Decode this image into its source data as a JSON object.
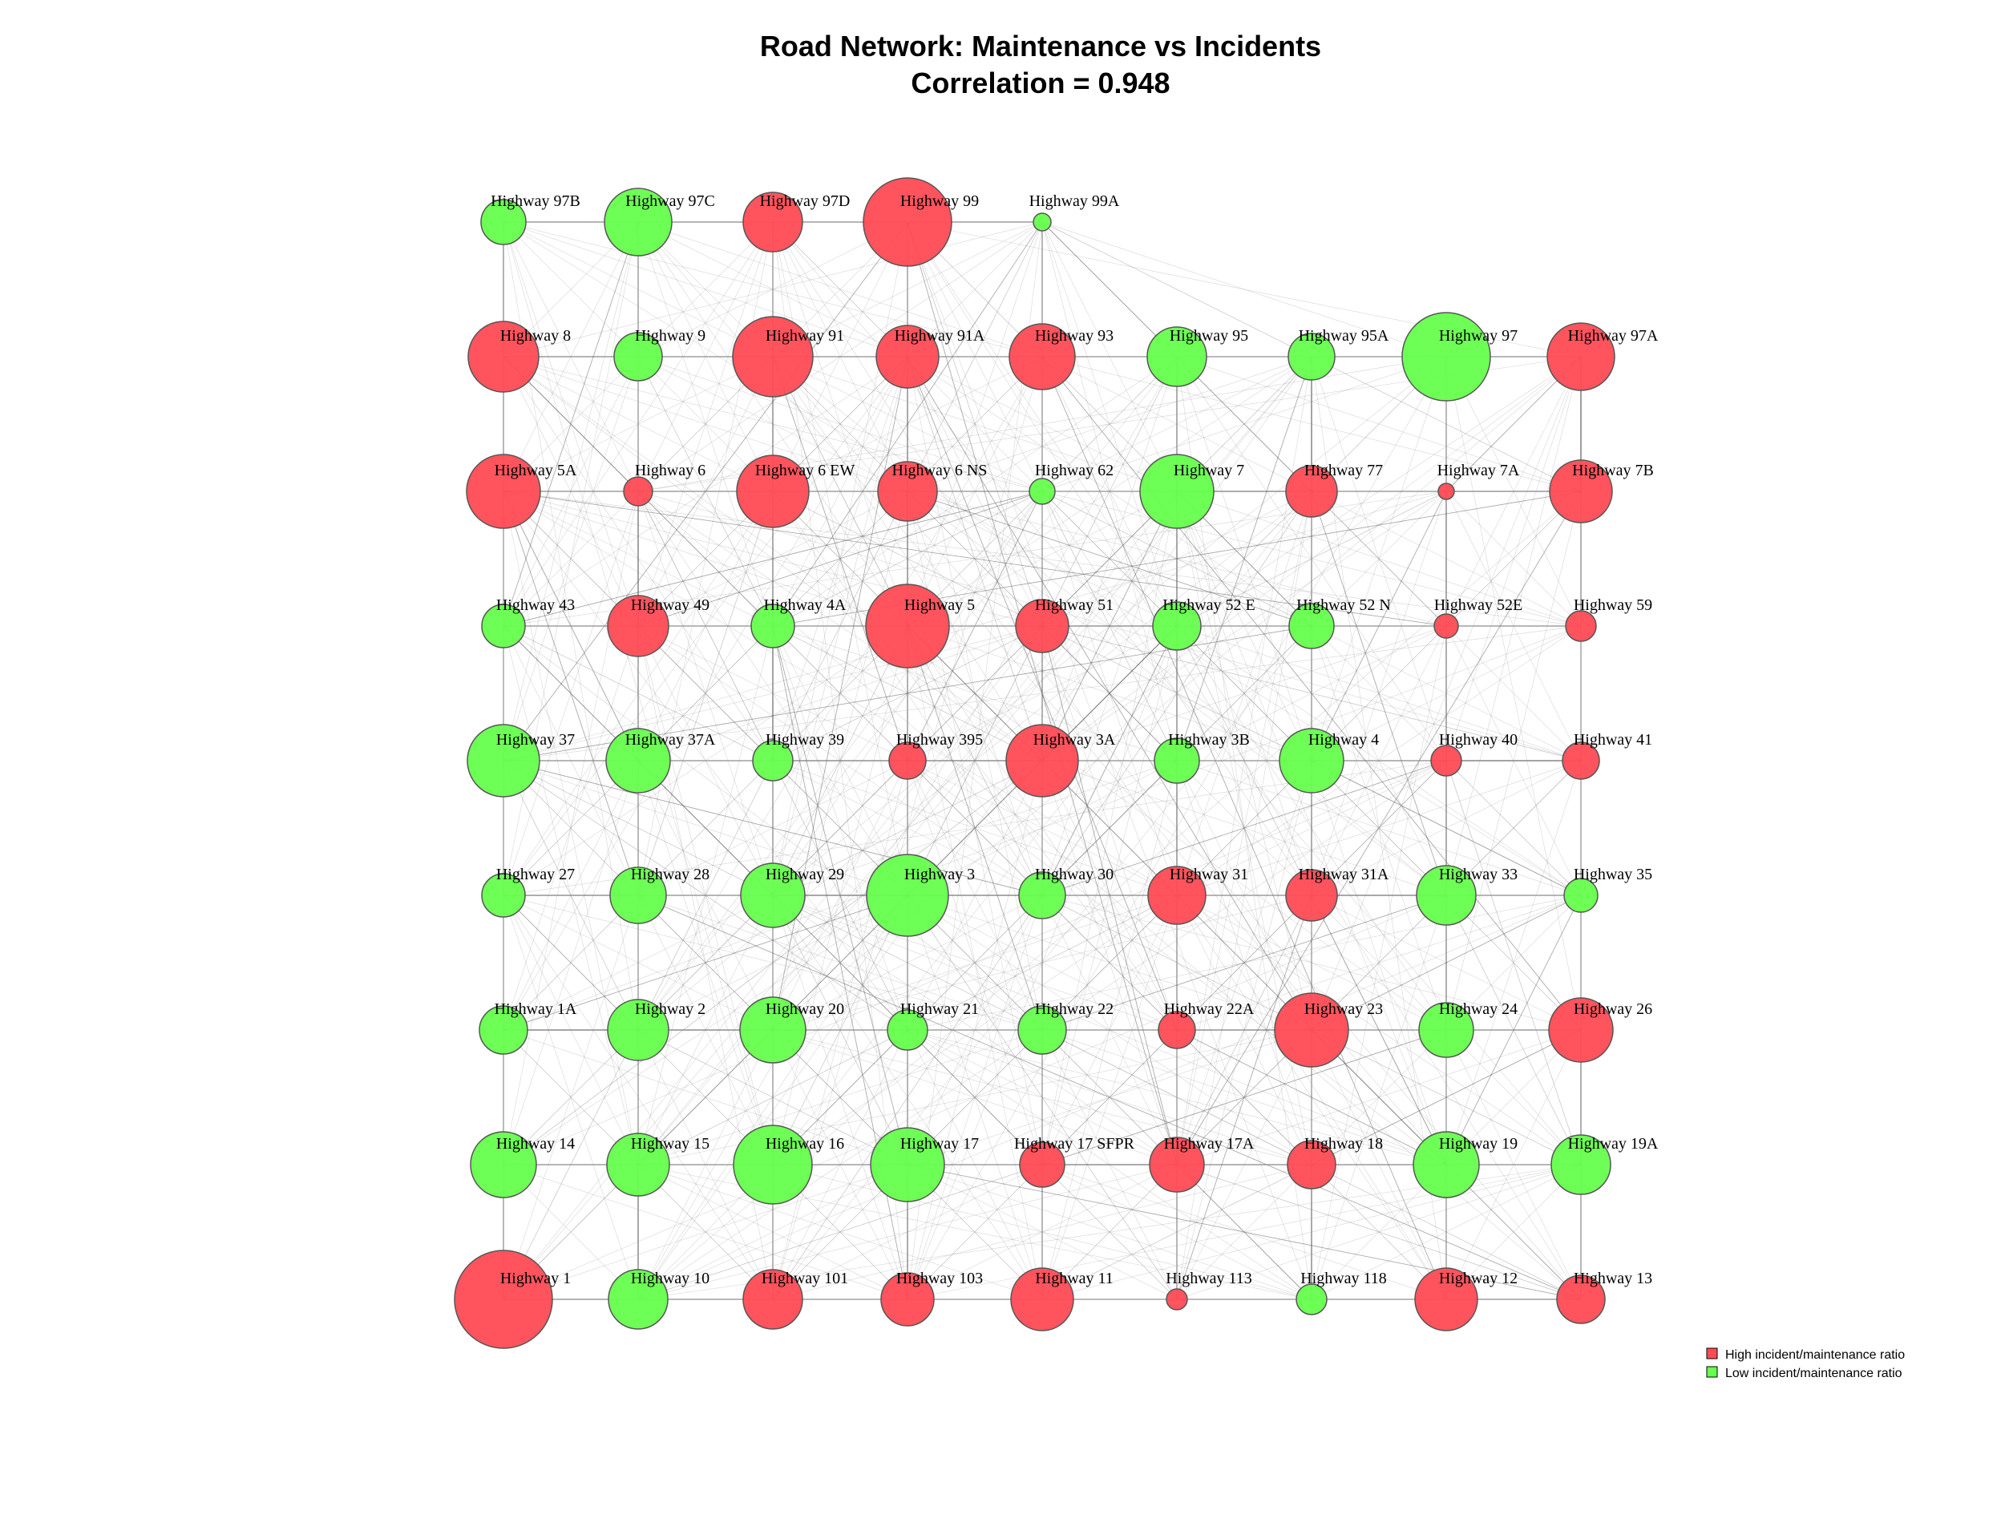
{
  "title": "Road Network: Maintenance vs Incidents",
  "subtitle": "Correlation = 0.948",
  "colors": {
    "high": "#FF4B55",
    "low": "#66FF4D",
    "edge": "#9a9a9a",
    "node_border": "#555555"
  },
  "legend": [
    {
      "label": "High incident/maintenance ratio",
      "color": "#FF4B55"
    },
    {
      "label": "Low incident/maintenance ratio",
      "color": "#66FF4D"
    }
  ],
  "rows": [
    {
      "nodes": [
        {
          "label": "Highway 97B",
          "group": "low",
          "size": 28
        },
        {
          "label": "Highway 97C",
          "group": "low",
          "size": 42
        },
        {
          "label": "Highway 97D",
          "group": "high",
          "size": 37
        },
        {
          "label": "Highway 99",
          "group": "high",
          "size": 55
        },
        {
          "label": "Highway 99A",
          "group": "low",
          "size": 11
        }
      ]
    },
    {
      "nodes": [
        {
          "label": "Highway 8",
          "group": "high",
          "size": 44
        },
        {
          "label": "Highway 9",
          "group": "low",
          "size": 30
        },
        {
          "label": "Highway 91",
          "group": "high",
          "size": 50
        },
        {
          "label": "Highway 91A",
          "group": "high",
          "size": 39
        },
        {
          "label": "Highway 93",
          "group": "high",
          "size": 41
        },
        {
          "label": "Highway 95",
          "group": "low",
          "size": 37
        },
        {
          "label": "Highway 95A",
          "group": "low",
          "size": 29
        },
        {
          "label": "Highway 97",
          "group": "low",
          "size": 55
        },
        {
          "label": "Highway 97A",
          "group": "high",
          "size": 42
        }
      ]
    },
    {
      "nodes": [
        {
          "label": "Highway 5A",
          "group": "high",
          "size": 46
        },
        {
          "label": "Highway 6",
          "group": "high",
          "size": 18
        },
        {
          "label": "Highway 6 EW",
          "group": "high",
          "size": 45
        },
        {
          "label": "Highway 6 NS",
          "group": "high",
          "size": 37
        },
        {
          "label": "Highway 62",
          "group": "low",
          "size": 16
        },
        {
          "label": "Highway 7",
          "group": "low",
          "size": 46
        },
        {
          "label": "Highway 77",
          "group": "high",
          "size": 32
        },
        {
          "label": "Highway 7A",
          "group": "high",
          "size": 10
        },
        {
          "label": "Highway 7B",
          "group": "high",
          "size": 39
        }
      ]
    },
    {
      "nodes": [
        {
          "label": "Highway 43",
          "group": "low",
          "size": 27
        },
        {
          "label": "Highway 49",
          "group": "high",
          "size": 38
        },
        {
          "label": "Highway 4A",
          "group": "low",
          "size": 27
        },
        {
          "label": "Highway 5",
          "group": "high",
          "size": 52
        },
        {
          "label": "Highway 51",
          "group": "high",
          "size": 33
        },
        {
          "label": "Highway 52 E",
          "group": "low",
          "size": 30
        },
        {
          "label": "Highway 52 N",
          "group": "low",
          "size": 28
        },
        {
          "label": "Highway 52E",
          "group": "high",
          "size": 15
        },
        {
          "label": "Highway 59",
          "group": "high",
          "size": 19
        }
      ]
    },
    {
      "nodes": [
        {
          "label": "Highway 37",
          "group": "low",
          "size": 45
        },
        {
          "label": "Highway 37A",
          "group": "low",
          "size": 40
        },
        {
          "label": "Highway 39",
          "group": "low",
          "size": 25
        },
        {
          "label": "Highway 395",
          "group": "high",
          "size": 23
        },
        {
          "label": "Highway 3A",
          "group": "high",
          "size": 45
        },
        {
          "label": "Highway 3B",
          "group": "low",
          "size": 28
        },
        {
          "label": "Highway 4",
          "group": "low",
          "size": 40
        },
        {
          "label": "Highway 40",
          "group": "high",
          "size": 19
        },
        {
          "label": "Highway 41",
          "group": "high",
          "size": 23
        }
      ]
    },
    {
      "nodes": [
        {
          "label": "Highway 27",
          "group": "low",
          "size": 27
        },
        {
          "label": "Highway 28",
          "group": "low",
          "size": 35
        },
        {
          "label": "Highway 29",
          "group": "low",
          "size": 40
        },
        {
          "label": "Highway 3",
          "group": "low",
          "size": 51
        },
        {
          "label": "Highway 30",
          "group": "low",
          "size": 29
        },
        {
          "label": "Highway 31",
          "group": "high",
          "size": 36
        },
        {
          "label": "Highway 31A",
          "group": "high",
          "size": 32
        },
        {
          "label": "Highway 33",
          "group": "low",
          "size": 37
        },
        {
          "label": "Highway 35",
          "group": "low",
          "size": 21
        }
      ]
    },
    {
      "nodes": [
        {
          "label": "Highway 1A",
          "group": "low",
          "size": 30
        },
        {
          "label": "Highway 2",
          "group": "low",
          "size": 38
        },
        {
          "label": "Highway 20",
          "group": "low",
          "size": 41
        },
        {
          "label": "Highway 21",
          "group": "low",
          "size": 25
        },
        {
          "label": "Highway 22",
          "group": "low",
          "size": 30
        },
        {
          "label": "Highway 22A",
          "group": "high",
          "size": 23
        },
        {
          "label": "Highway 23",
          "group": "high",
          "size": 46
        },
        {
          "label": "Highway 24",
          "group": "low",
          "size": 34
        },
        {
          "label": "Highway 26",
          "group": "high",
          "size": 40
        }
      ]
    },
    {
      "nodes": [
        {
          "label": "Highway 14",
          "group": "low",
          "size": 41
        },
        {
          "label": "Highway 15",
          "group": "low",
          "size": 39
        },
        {
          "label": "Highway 16",
          "group": "low",
          "size": 49
        },
        {
          "label": "Highway 17",
          "group": "low",
          "size": 46
        },
        {
          "label": "Highway 17 SFPR",
          "group": "high",
          "size": 28
        },
        {
          "label": "Highway 17A",
          "group": "high",
          "size": 34
        },
        {
          "label": "Highway 18",
          "group": "high",
          "size": 30
        },
        {
          "label": "Highway 19",
          "group": "low",
          "size": 41
        },
        {
          "label": "Highway 19A",
          "group": "low",
          "size": 37
        }
      ]
    },
    {
      "nodes": [
        {
          "label": "Highway 1",
          "group": "high",
          "size": 61
        },
        {
          "label": "Highway 10",
          "group": "low",
          "size": 37
        },
        {
          "label": "Highway 101",
          "group": "high",
          "size": 37
        },
        {
          "label": "Highway 103",
          "group": "high",
          "size": 33
        },
        {
          "label": "Highway 11",
          "group": "high",
          "size": 39
        },
        {
          "label": "Highway 113",
          "group": "high",
          "size": 13
        },
        {
          "label": "Highway 118",
          "group": "low",
          "size": 19
        },
        {
          "label": "Highway 12",
          "group": "high",
          "size": 39
        },
        {
          "label": "Highway 13",
          "group": "high",
          "size": 30
        }
      ]
    }
  ]
}
